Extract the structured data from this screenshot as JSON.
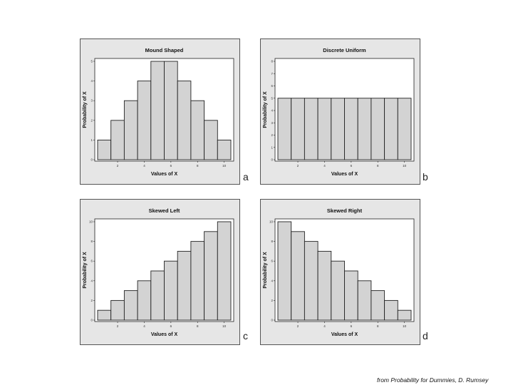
{
  "chart_data": [
    {
      "type": "bar",
      "title": "Mound Shaped",
      "panel_letter": "a",
      "xlabel": "Values of X",
      "ylabel": "Probability of X",
      "categories": [
        1,
        2,
        3,
        4,
        5,
        6,
        7,
        8,
        9,
        10
      ],
      "values": [
        1,
        2,
        3,
        4,
        5,
        5,
        4,
        3,
        2,
        1
      ],
      "ylim": [
        0,
        5
      ],
      "yticks": [
        0,
        1,
        2,
        3,
        4,
        5
      ],
      "xticks": [
        2,
        4,
        6,
        8,
        10
      ],
      "bar_color": "#d3d3d3"
    },
    {
      "type": "bar",
      "title": "Discrete Uniform",
      "panel_letter": "b",
      "xlabel": "Values of X",
      "ylabel": "Probability of X",
      "categories": [
        1,
        2,
        3,
        4,
        5,
        6,
        7,
        8,
        9,
        10
      ],
      "values": [
        5,
        5,
        5,
        5,
        5,
        5,
        5,
        5,
        5,
        5
      ],
      "ylim": [
        0,
        8
      ],
      "yticks": [
        0,
        1,
        2,
        3,
        4,
        5,
        6,
        7,
        8
      ],
      "xticks": [
        2,
        4,
        6,
        8,
        10
      ],
      "bar_color": "#d3d3d3"
    },
    {
      "type": "bar",
      "title": "Skewed Left",
      "panel_letter": "c",
      "xlabel": "Values of X",
      "ylabel": "Probability of X",
      "categories": [
        1,
        2,
        3,
        4,
        5,
        6,
        7,
        8,
        9,
        10
      ],
      "values": [
        1,
        2,
        3,
        4,
        5,
        6,
        7,
        8,
        9,
        10
      ],
      "ylim": [
        0,
        10
      ],
      "yticks": [
        0,
        2,
        4,
        6,
        8,
        10
      ],
      "xticks": [
        2,
        4,
        6,
        8,
        10
      ],
      "bar_color": "#d3d3d3"
    },
    {
      "type": "bar",
      "title": "Skewed Right",
      "panel_letter": "d",
      "xlabel": "Values of X",
      "ylabel": "Probability of X",
      "categories": [
        1,
        2,
        3,
        4,
        5,
        6,
        7,
        8,
        9,
        10
      ],
      "values": [
        10,
        9,
        8,
        7,
        6,
        5,
        4,
        3,
        2,
        1
      ],
      "ylim": [
        0,
        10
      ],
      "yticks": [
        0,
        2,
        4,
        6,
        8,
        10
      ],
      "xticks": [
        2,
        4,
        6,
        8,
        10
      ],
      "bar_color": "#d3d3d3"
    }
  ],
  "credit": "from Probability for Dummies, D. Rumsey"
}
